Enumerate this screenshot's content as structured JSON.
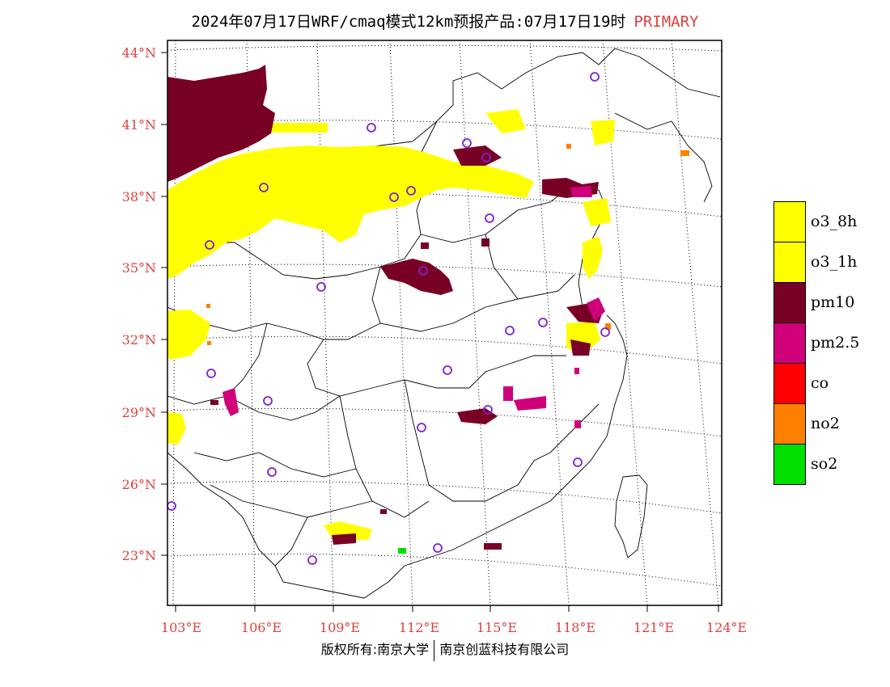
{
  "title": {
    "text": "2024年07月17日WRF/cmaq模式12km预报产品:07月17日19时",
    "tag": "PRIMARY",
    "tag_color": "#e04040"
  },
  "map": {
    "lat_labels": [
      "44°N",
      "41°N",
      "38°N",
      "35°N",
      "32°N",
      "29°N",
      "26°N",
      "23°N"
    ],
    "lon_labels": [
      "103°E",
      "106°E",
      "109°E",
      "112°E",
      "115°E",
      "118°E",
      "121°E",
      "124°E"
    ],
    "label_color": "#e04040",
    "station_marker_color": "#8020d0"
  },
  "legend": {
    "items": [
      {
        "label": "o3_8h",
        "color": "#ffff00"
      },
      {
        "label": "o3_1h",
        "color": "#ffff00"
      },
      {
        "label": "pm10",
        "color": "#780024"
      },
      {
        "label": "pm2.5",
        "color": "#d0007a"
      },
      {
        "label": "co",
        "color": "#ff0000"
      },
      {
        "label": "no2",
        "color": "#ff8000"
      },
      {
        "label": "so2",
        "color": "#00e000"
      }
    ]
  },
  "footer": {
    "left": "版权所有:南京大学",
    "right": "南京创蓝科技有限公司"
  }
}
